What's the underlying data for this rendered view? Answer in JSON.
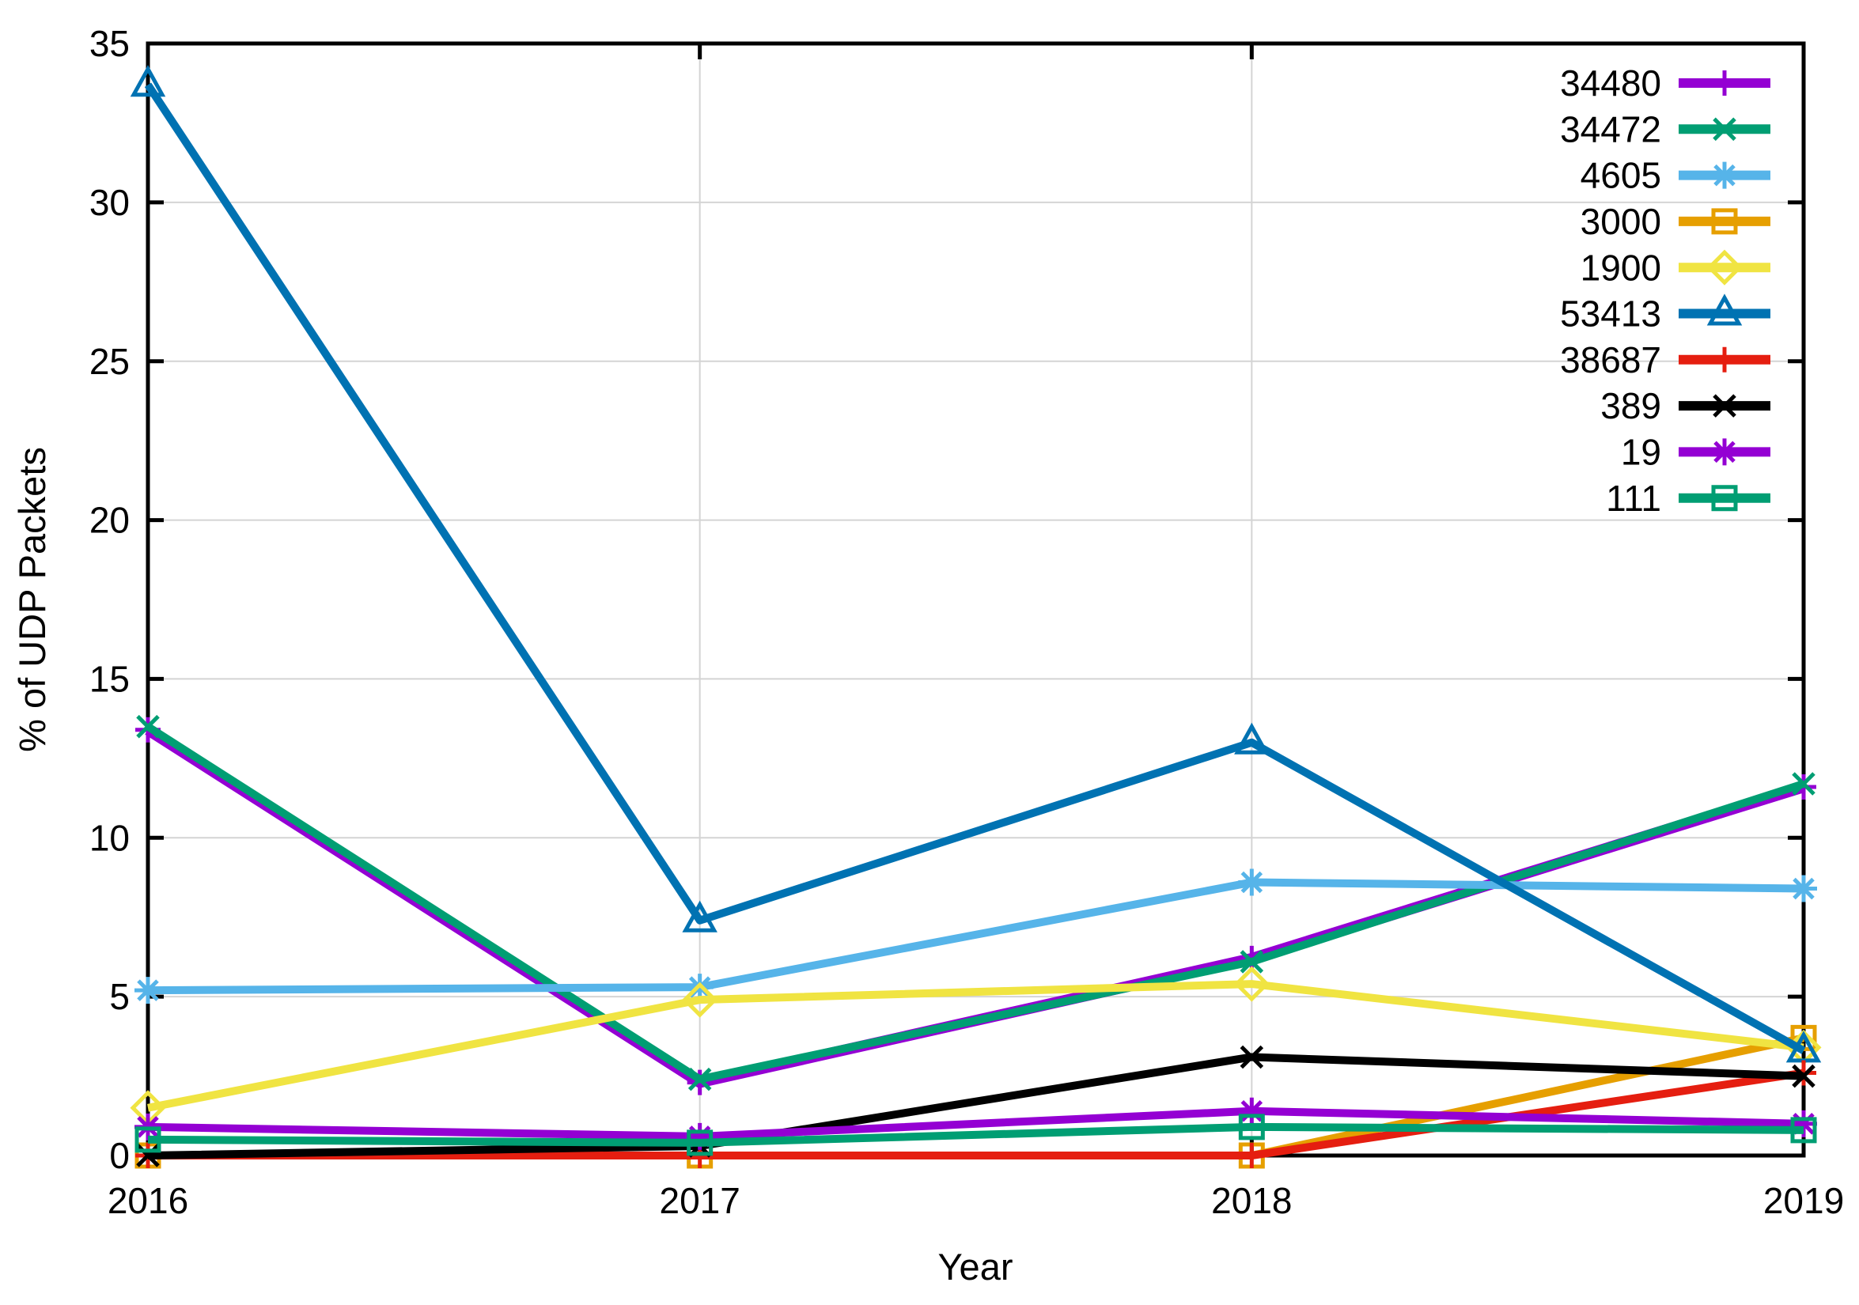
{
  "chart_data": {
    "type": "line",
    "title": "",
    "xlabel": "Year",
    "ylabel": "% of UDP Packets",
    "x": [
      2016,
      2017,
      2018,
      2019
    ],
    "xlim": [
      2016,
      2019
    ],
    "ylim": [
      0,
      35
    ],
    "xticks": [
      "2016",
      "2017",
      "2018",
      "2019"
    ],
    "yticks": [
      "0",
      "5",
      "10",
      "15",
      "20",
      "25",
      "30",
      "35"
    ],
    "grid": true,
    "legend_position": "top-right-inside",
    "grid_color": "#d4d4d4",
    "border_color": "#000000",
    "series": [
      {
        "name": "34480",
        "color": "#9400d3",
        "marker": "plus",
        "values": [
          13.4,
          2.3,
          6.2,
          11.6
        ]
      },
      {
        "name": "34472",
        "color": "#009e73",
        "marker": "x",
        "values": [
          13.5,
          2.4,
          6.1,
          11.7
        ]
      },
      {
        "name": "4605",
        "color": "#56b4e9",
        "marker": "asterisk",
        "values": [
          5.2,
          5.3,
          8.6,
          8.4
        ]
      },
      {
        "name": "3000",
        "color": "#e69f00",
        "marker": "square-open",
        "values": [
          0.0,
          0.0,
          0.0,
          3.7
        ]
      },
      {
        "name": "1900",
        "color": "#f0e442",
        "marker": "diamond-open",
        "values": [
          1.5,
          4.9,
          5.4,
          3.4
        ]
      },
      {
        "name": "53413",
        "color": "#0072b2",
        "marker": "triangle-open",
        "values": [
          33.7,
          7.4,
          13.0,
          3.3
        ]
      },
      {
        "name": "38687",
        "color": "#e51e10",
        "marker": "plus",
        "values": [
          0.0,
          0.0,
          0.0,
          2.6
        ]
      },
      {
        "name": "389",
        "color": "#000000",
        "marker": "x",
        "values": [
          0.0,
          0.3,
          3.1,
          2.5
        ]
      },
      {
        "name": "19",
        "color": "#9400d3",
        "marker": "asterisk",
        "values": [
          0.9,
          0.6,
          1.4,
          1.0
        ]
      },
      {
        "name": "111",
        "color": "#009e73",
        "marker": "square-open",
        "values": [
          0.5,
          0.4,
          0.9,
          0.8
        ]
      }
    ]
  }
}
